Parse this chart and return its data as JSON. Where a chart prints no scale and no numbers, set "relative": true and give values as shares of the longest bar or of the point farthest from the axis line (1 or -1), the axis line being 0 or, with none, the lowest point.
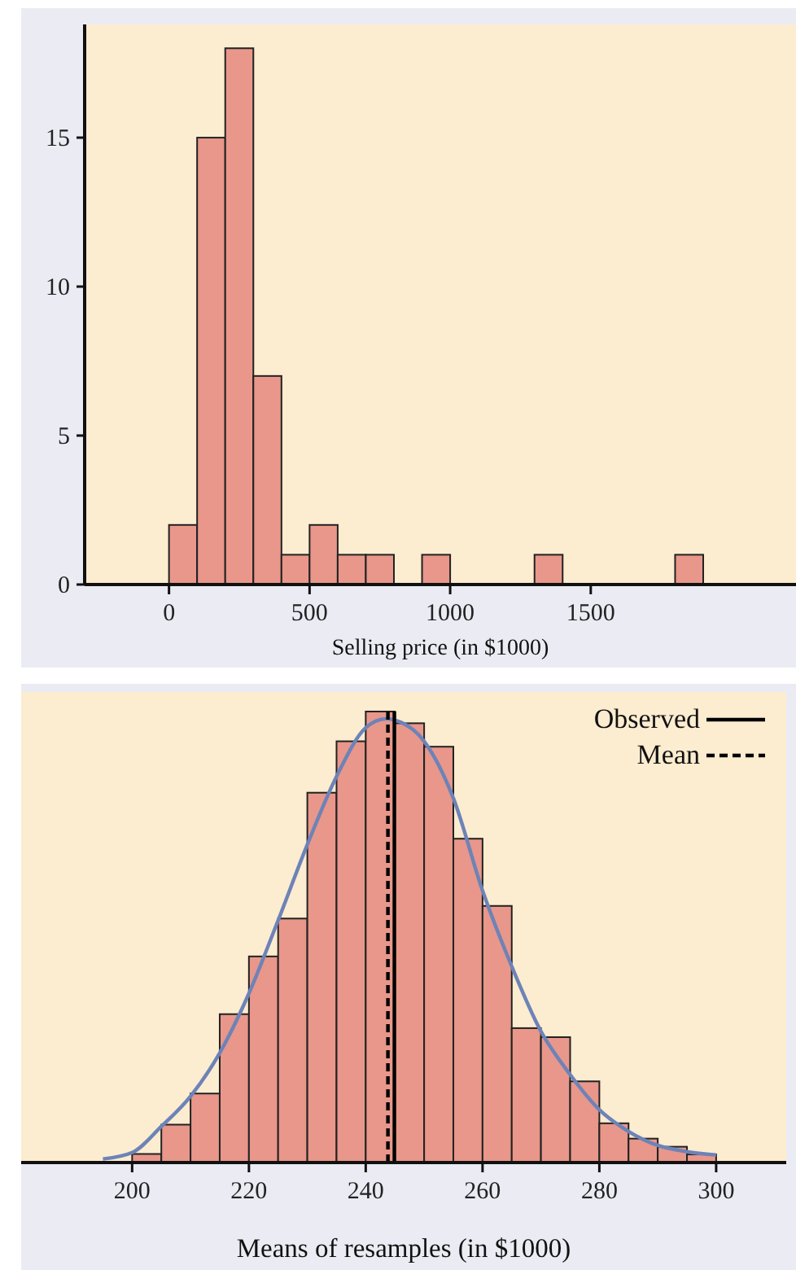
{
  "chart_data": [
    {
      "type": "histogram",
      "xlabel": "Selling price (in $1000)",
      "bins": [
        0,
        100,
        200,
        300,
        400,
        500,
        600,
        700,
        800,
        900,
        1000,
        1100,
        1200,
        1300,
        1400,
        1500,
        1600,
        1700,
        1800,
        1900
      ],
      "values": [
        2,
        15,
        18,
        7,
        1,
        2,
        1,
        1,
        0,
        1,
        0,
        0,
        0,
        1,
        0,
        0,
        0,
        0,
        1
      ],
      "color": "#e8978a",
      "xlim": [
        -300,
        2230
      ],
      "xticks": [
        0,
        500,
        1000,
        1500
      ],
      "ylim": [
        0,
        18.8
      ],
      "yticks": [
        0,
        5,
        10,
        15
      ],
      "grid": false
    },
    {
      "type": "histogram",
      "xlabel": "Means of resamples (in $1000)",
      "relative": true,
      "bins": [
        200,
        205,
        210,
        215,
        220,
        225,
        230,
        235,
        240,
        245,
        250,
        255,
        260,
        265,
        270,
        275,
        280,
        285,
        290,
        295,
        300
      ],
      "values": [
        0.019,
        0.084,
        0.153,
        0.329,
        0.457,
        0.541,
        0.82,
        0.934,
        1,
        0.974,
        0.922,
        0.718,
        0.569,
        0.298,
        0.278,
        0.18,
        0.087,
        0.053,
        0.035,
        0.018
      ],
      "color": "#e8978a",
      "xlim": [
        181,
        312
      ],
      "xticks": [
        200,
        220,
        240,
        260,
        280,
        300
      ],
      "grid": false,
      "series": [
        {
          "type": "line",
          "color": "#6d83b8",
          "x": [
            195,
            200,
            205,
            210,
            215,
            220,
            225,
            230,
            235,
            240,
            243.5,
            245,
            250,
            255,
            260,
            265,
            270,
            275,
            280,
            285,
            290,
            295,
            300
          ],
          "values": [
            0.008,
            0.022,
            0.08,
            0.147,
            0.243,
            0.375,
            0.537,
            0.705,
            0.856,
            0.964,
            0.984,
            0.981,
            0.934,
            0.808,
            0.603,
            0.435,
            0.291,
            0.195,
            0.117,
            0.069,
            0.038,
            0.024,
            0.017
          ]
        },
        {
          "type": "line",
          "name": "Observed",
          "color": "#000000",
          "line_style": "solid",
          "x": [
            244.9,
            244.9
          ],
          "values": [
            0,
            1
          ]
        },
        {
          "type": "line",
          "name": "Mean",
          "color": "#000000",
          "line_style": "dashed",
          "x": [
            243.8,
            243.8
          ],
          "values": [
            0,
            1
          ]
        }
      ],
      "legend": "top right"
    }
  ]
}
